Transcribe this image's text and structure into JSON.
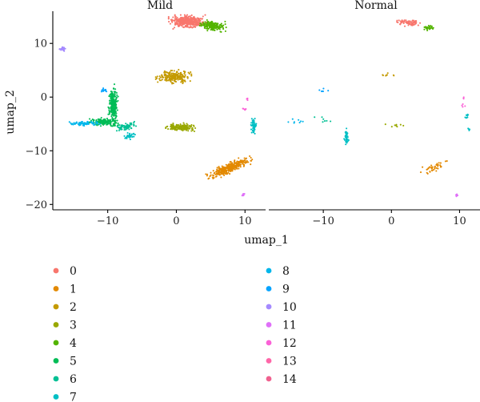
{
  "chart_data": {
    "type": "scatter",
    "facets": [
      "Mild",
      "Normal"
    ],
    "xlabel": "umap_1",
    "ylabel": "umap_2",
    "xlim": [
      -18,
      13
    ],
    "ylim": [
      -21,
      16
    ],
    "x_ticks": [
      -10,
      0,
      10
    ],
    "x_tick_labels": [
      "−10",
      "0",
      "10"
    ],
    "y_ticks": [
      -20,
      -10,
      0,
      10
    ],
    "y_tick_labels": [
      "−20",
      "−10",
      "0",
      "10"
    ],
    "legend_position": "bottom",
    "clusters": [
      {
        "id": "0",
        "color": "#F8766D"
      },
      {
        "id": "1",
        "color": "#E38900"
      },
      {
        "id": "2",
        "color": "#C49A00"
      },
      {
        "id": "3",
        "color": "#99A800"
      },
      {
        "id": "4",
        "color": "#53B400"
      },
      {
        "id": "5",
        "color": "#00BC56"
      },
      {
        "id": "6",
        "color": "#00C094"
      },
      {
        "id": "7",
        "color": "#00BFC4"
      },
      {
        "id": "8",
        "color": "#00B6EB"
      },
      {
        "id": "9",
        "color": "#06A4FF"
      },
      {
        "id": "10",
        "color": "#A58AFF"
      },
      {
        "id": "11",
        "color": "#DF70F8"
      },
      {
        "id": "12",
        "color": "#FB61D7"
      },
      {
        "id": "13",
        "color": "#FF66A8"
      },
      {
        "id": "14",
        "color": "#F0618F"
      }
    ],
    "blobs": {
      "Mild": [
        {
          "cluster": "0",
          "shape": "ellipse",
          "cx": 1.6,
          "cy": 14.0,
          "rx": 2.1,
          "ry": 1.0,
          "angle": 0,
          "n": 420
        },
        {
          "cluster": "4",
          "shape": "ellipse",
          "cx": 5.2,
          "cy": 13.3,
          "rx": 1.6,
          "ry": 0.8,
          "angle": -8,
          "n": 200
        },
        {
          "cluster": "2",
          "shape": "ellipse",
          "cx": -0.4,
          "cy": 3.8,
          "rx": 2.0,
          "ry": 1.0,
          "angle": 0,
          "n": 230
        },
        {
          "cluster": "3",
          "shape": "ellipse",
          "cx": 0.8,
          "cy": -5.6,
          "rx": 1.8,
          "ry": 0.6,
          "angle": 0,
          "n": 170
        },
        {
          "cluster": "1",
          "shape": "ellipse",
          "cx": 7.6,
          "cy": -13.2,
          "rx": 2.9,
          "ry": 0.8,
          "angle": 30,
          "n": 330
        },
        {
          "cluster": "10",
          "shape": "ellipse",
          "cx": -16.6,
          "cy": 9.0,
          "rx": 0.4,
          "ry": 0.4,
          "angle": 0,
          "n": 30
        },
        {
          "cluster": "9",
          "shape": "ellipse",
          "cx": -10.5,
          "cy": 1.3,
          "rx": 0.4,
          "ry": 0.3,
          "angle": 0,
          "n": 20
        },
        {
          "cluster": "5",
          "shape": "ellipse",
          "cx": -9.2,
          "cy": -1.5,
          "rx": 0.55,
          "ry": 3.0,
          "angle": 0,
          "n": 260
        },
        {
          "cluster": "5",
          "shape": "ellipse",
          "cx": -10.3,
          "cy": -4.6,
          "rx": 1.8,
          "ry": 0.6,
          "angle": 0,
          "n": 150
        },
        {
          "cluster": "6",
          "shape": "ellipse",
          "cx": -7.6,
          "cy": -5.6,
          "rx": 1.4,
          "ry": 0.5,
          "angle": 20,
          "n": 70
        },
        {
          "cluster": "8",
          "shape": "ellipse",
          "cx": -13.4,
          "cy": -4.9,
          "rx": 1.8,
          "ry": 0.35,
          "angle": 0,
          "n": 80
        },
        {
          "cluster": "7",
          "shape": "ellipse",
          "cx": -6.8,
          "cy": -7.3,
          "rx": 0.6,
          "ry": 0.6,
          "angle": 0,
          "n": 40
        },
        {
          "cluster": "12",
          "shape": "ellipse",
          "cx": 10.3,
          "cy": -0.4,
          "rx": 0.2,
          "ry": 0.2,
          "angle": 0,
          "n": 4
        },
        {
          "cluster": "12",
          "shape": "ellipse",
          "cx": 9.7,
          "cy": -2.2,
          "rx": 0.5,
          "ry": 0.2,
          "angle": 0,
          "n": 6
        },
        {
          "cluster": "7",
          "shape": "ellipse",
          "cx": 11.3,
          "cy": -5.5,
          "rx": 0.35,
          "ry": 1.3,
          "angle": 0,
          "n": 55
        },
        {
          "cluster": "11",
          "shape": "ellipse",
          "cx": 9.7,
          "cy": -18.2,
          "rx": 0.25,
          "ry": 0.35,
          "angle": 0,
          "n": 10
        }
      ],
      "Normal": [
        {
          "cluster": "0",
          "shape": "ellipse",
          "cx": 2.6,
          "cy": 13.9,
          "rx": 1.6,
          "ry": 0.55,
          "angle": 0,
          "n": 70
        },
        {
          "cluster": "4",
          "shape": "ellipse",
          "cx": 5.4,
          "cy": 12.9,
          "rx": 1.1,
          "ry": 0.4,
          "angle": -5,
          "n": 30
        },
        {
          "cluster": "2",
          "shape": "ellipse",
          "cx": -0.2,
          "cy": 4.0,
          "rx": 1.6,
          "ry": 0.45,
          "angle": 0,
          "n": 8
        },
        {
          "cluster": "3",
          "shape": "ellipse",
          "cx": 0.5,
          "cy": -5.4,
          "rx": 1.4,
          "ry": 0.45,
          "angle": 0,
          "n": 8
        },
        {
          "cluster": "1",
          "shape": "ellipse",
          "cx": 6.4,
          "cy": -13.1,
          "rx": 1.8,
          "ry": 0.7,
          "angle": 25,
          "n": 40
        },
        {
          "cluster": "9",
          "shape": "ellipse",
          "cx": -10.2,
          "cy": 1.2,
          "rx": 0.7,
          "ry": 0.3,
          "angle": 0,
          "n": 6
        },
        {
          "cluster": "8",
          "shape": "ellipse",
          "cx": -13.8,
          "cy": -4.6,
          "rx": 1.6,
          "ry": 0.5,
          "angle": 0,
          "n": 8
        },
        {
          "cluster": "6",
          "shape": "ellipse",
          "cx": -10.0,
          "cy": -4.2,
          "rx": 1.4,
          "ry": 0.8,
          "angle": 0,
          "n": 7
        },
        {
          "cluster": "7",
          "shape": "ellipse",
          "cx": -6.6,
          "cy": -7.4,
          "rx": 0.3,
          "ry": 1.2,
          "angle": 0,
          "n": 40
        },
        {
          "cluster": "12",
          "shape": "ellipse",
          "cx": 10.6,
          "cy": -0.3,
          "rx": 0.2,
          "ry": 0.3,
          "angle": 0,
          "n": 3
        },
        {
          "cluster": "12",
          "shape": "ellipse",
          "cx": 10.5,
          "cy": -1.7,
          "rx": 0.4,
          "ry": 0.3,
          "angle": 0,
          "n": 4
        },
        {
          "cluster": "7",
          "shape": "ellipse",
          "cx": 11.0,
          "cy": -3.6,
          "rx": 0.3,
          "ry": 0.5,
          "angle": 0,
          "n": 8
        },
        {
          "cluster": "7",
          "shape": "ellipse",
          "cx": 11.4,
          "cy": -6.0,
          "rx": 0.15,
          "ry": 0.3,
          "angle": 0,
          "n": 4
        },
        {
          "cluster": "11",
          "shape": "ellipse",
          "cx": 9.6,
          "cy": -18.2,
          "rx": 0.2,
          "ry": 0.35,
          "angle": 0,
          "n": 8
        }
      ]
    }
  }
}
